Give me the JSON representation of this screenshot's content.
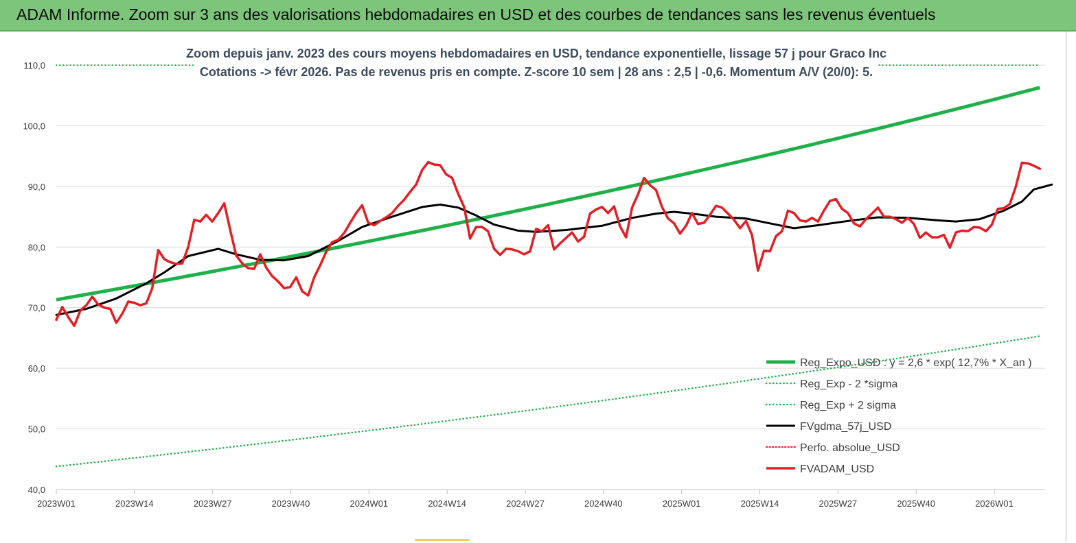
{
  "header": {
    "title": "ADAM Informe. Zoom sur 3 ans des valorisations hebdomadaires en USD et des courbes de tendances sans les revenus éventuels",
    "background": "#7dc57b"
  },
  "chart_data": {
    "type": "line",
    "subtitle_lines": [
      "Zoom depuis janv. 2023 des cours moyens hebdomadaires en USD, tendance exponentielle, lissage 57 j pour Graco Inc",
      "Cotations -> févr 2026.  Pas de revenus pris en compte. Z-score 10 sem  | 28 ans : 2,5 | -0,6. Momentum A/V (20/0): 5."
    ],
    "x_tick_labels": [
      "2023W01",
      "2023W14",
      "2023W27",
      "2023W40",
      "2024W01",
      "2024W14",
      "2024W27",
      "2024W40",
      "2025W01",
      "2025W14",
      "2025W27",
      "2025W40",
      "2026W01"
    ],
    "x_range_weeks": [
      0,
      164
    ],
    "ylim": [
      40,
      110
    ],
    "y_ticks": [
      40,
      50,
      60,
      70,
      80,
      90,
      100,
      110
    ],
    "y_tick_labels": [
      "40,0",
      "50,0",
      "60,0",
      "70,0",
      "80,0",
      "90,0",
      "100,0",
      "110,0"
    ],
    "grid": "horizontal",
    "legend_position": "bottom-right",
    "series": [
      {
        "name": "Reg_Expo_USD : y = 2,6 * exp( 12,7% *  X_an )",
        "color": "#1fb04a",
        "style": "solid-thick",
        "start": 71.3,
        "end": 106.3
      },
      {
        "name": "Reg_Exp - 2 *sigma",
        "color": "#1fb04a",
        "style": "dotted",
        "start": 43.8,
        "end": 65.3
      },
      {
        "name": "Reg_Exp + 2 sigma",
        "color": "#1fb04a",
        "style": "dotted",
        "start": 110.0,
        "end": 110.0
      },
      {
        "name": "FVgdma_57j_USD",
        "color": "#000000",
        "style": "solid",
        "points": [
          [
            0,
            68.8
          ],
          [
            5,
            69.8
          ],
          [
            10,
            71.5
          ],
          [
            15,
            74.0
          ],
          [
            18,
            75.8
          ],
          [
            22,
            78.5
          ],
          [
            27,
            79.7
          ],
          [
            30,
            78.8
          ],
          [
            34,
            77.9
          ],
          [
            38,
            77.8
          ],
          [
            42,
            78.5
          ],
          [
            47,
            81.0
          ],
          [
            51,
            83.3
          ],
          [
            56,
            85.0
          ],
          [
            61,
            86.6
          ],
          [
            64,
            87.0
          ],
          [
            67,
            86.5
          ],
          [
            70,
            85.2
          ],
          [
            73,
            83.7
          ],
          [
            77,
            82.7
          ],
          [
            80,
            82.5
          ],
          [
            85,
            82.8
          ],
          [
            91,
            83.5
          ],
          [
            96,
            84.8
          ],
          [
            100,
            85.5
          ],
          [
            103,
            85.8
          ],
          [
            106,
            85.5
          ],
          [
            110,
            85.0
          ],
          [
            115,
            84.7
          ],
          [
            119,
            83.9
          ],
          [
            123,
            83.1
          ],
          [
            127,
            83.6
          ],
          [
            132,
            84.3
          ],
          [
            137,
            84.9
          ],
          [
            142,
            84.8
          ],
          [
            147,
            84.4
          ],
          [
            150,
            84.2
          ],
          [
            154,
            84.6
          ],
          [
            158,
            86.0
          ],
          [
            161,
            87.5
          ],
          [
            163,
            89.5
          ],
          [
            166,
            90.3
          ]
        ]
      },
      {
        "name": "Perfo. absolue_USD",
        "color": "#e31e24",
        "style": "dotted"
      },
      {
        "name": "FVADAM_USD",
        "color": "#e31e24",
        "style": "solid-thick",
        "points": [
          [
            0,
            68.0
          ],
          [
            1,
            70.1
          ],
          [
            2,
            68.4
          ],
          [
            3,
            67.0
          ],
          [
            4,
            69.5
          ],
          [
            5,
            70.4
          ],
          [
            6,
            71.8
          ],
          [
            7,
            70.5
          ],
          [
            8,
            70.0
          ],
          [
            9,
            69.8
          ],
          [
            10,
            67.5
          ],
          [
            11,
            69.0
          ],
          [
            12,
            71.0
          ],
          [
            13,
            70.8
          ],
          [
            14,
            70.4
          ],
          [
            15,
            70.7
          ],
          [
            16,
            73.2
          ],
          [
            17,
            79.5
          ],
          [
            18,
            78.0
          ],
          [
            19,
            77.5
          ],
          [
            20,
            77.2
          ],
          [
            21,
            77.3
          ],
          [
            22,
            80.0
          ],
          [
            23,
            84.5
          ],
          [
            24,
            84.2
          ],
          [
            25,
            85.3
          ],
          [
            26,
            84.2
          ],
          [
            27,
            85.6
          ],
          [
            28,
            87.2
          ],
          [
            29,
            82.8
          ],
          [
            30,
            78.6
          ],
          [
            31,
            77.3
          ],
          [
            32,
            76.5
          ],
          [
            33,
            76.4
          ],
          [
            34,
            78.8
          ],
          [
            35,
            76.6
          ],
          [
            36,
            75.2
          ],
          [
            37,
            74.3
          ],
          [
            38,
            73.2
          ],
          [
            39,
            73.4
          ],
          [
            40,
            75.0
          ],
          [
            41,
            72.7
          ],
          [
            42,
            72.0
          ],
          [
            43,
            75.0
          ],
          [
            44,
            77.0
          ],
          [
            45,
            79.2
          ],
          [
            46,
            80.8
          ],
          [
            47,
            81.2
          ],
          [
            48,
            82.3
          ],
          [
            49,
            84.0
          ],
          [
            50,
            85.6
          ],
          [
            51,
            86.9
          ],
          [
            52,
            84.0
          ],
          [
            53,
            83.6
          ],
          [
            54,
            84.3
          ],
          [
            55,
            84.9
          ],
          [
            56,
            85.6
          ],
          [
            57,
            86.8
          ],
          [
            58,
            87.8
          ],
          [
            59,
            89.1
          ],
          [
            60,
            90.3
          ],
          [
            61,
            92.7
          ],
          [
            62,
            94.0
          ],
          [
            63,
            93.6
          ],
          [
            64,
            93.5
          ],
          [
            65,
            92.0
          ],
          [
            66,
            91.4
          ],
          [
            67,
            88.8
          ],
          [
            68,
            86.6
          ],
          [
            69,
            81.4
          ],
          [
            70,
            83.3
          ],
          [
            71,
            83.3
          ],
          [
            72,
            82.6
          ],
          [
            73,
            79.7
          ],
          [
            74,
            78.7
          ],
          [
            75,
            79.7
          ],
          [
            76,
            79.6
          ],
          [
            77,
            79.3
          ],
          [
            78,
            78.8
          ],
          [
            79,
            79.3
          ],
          [
            80,
            83.0
          ],
          [
            81,
            82.6
          ],
          [
            82,
            83.6
          ],
          [
            83,
            79.6
          ],
          [
            84,
            80.6
          ],
          [
            85,
            81.5
          ],
          [
            86,
            82.4
          ],
          [
            87,
            80.9
          ],
          [
            88,
            81.7
          ],
          [
            89,
            85.5
          ],
          [
            90,
            86.2
          ],
          [
            91,
            86.6
          ],
          [
            92,
            85.6
          ],
          [
            93,
            86.7
          ],
          [
            94,
            83.4
          ],
          [
            95,
            81.6
          ],
          [
            96,
            86.5
          ],
          [
            97,
            88.7
          ],
          [
            98,
            91.4
          ],
          [
            99,
            90.2
          ],
          [
            100,
            89.4
          ],
          [
            101,
            86.6
          ],
          [
            102,
            84.7
          ],
          [
            103,
            83.9
          ],
          [
            104,
            82.2
          ],
          [
            105,
            83.5
          ],
          [
            106,
            85.6
          ],
          [
            107,
            83.8
          ],
          [
            108,
            84.0
          ],
          [
            109,
            85.3
          ],
          [
            110,
            86.8
          ],
          [
            111,
            86.5
          ],
          [
            112,
            85.5
          ],
          [
            113,
            84.5
          ],
          [
            114,
            83.1
          ],
          [
            115,
            84.3
          ],
          [
            116,
            82.0
          ],
          [
            117,
            76.1
          ],
          [
            118,
            79.4
          ],
          [
            119,
            79.3
          ],
          [
            120,
            81.8
          ],
          [
            121,
            82.6
          ],
          [
            122,
            86.0
          ],
          [
            123,
            85.6
          ],
          [
            124,
            84.4
          ],
          [
            125,
            84.2
          ],
          [
            126,
            84.8
          ],
          [
            127,
            84.2
          ],
          [
            128,
            86.0
          ],
          [
            129,
            87.6
          ],
          [
            130,
            87.9
          ],
          [
            131,
            86.3
          ],
          [
            132,
            85.6
          ],
          [
            133,
            83.9
          ],
          [
            134,
            83.4
          ],
          [
            135,
            84.6
          ],
          [
            136,
            85.5
          ],
          [
            137,
            86.5
          ],
          [
            138,
            85.0
          ],
          [
            139,
            85.0
          ],
          [
            140,
            84.6
          ],
          [
            141,
            84.0
          ],
          [
            142,
            84.8
          ],
          [
            143,
            83.8
          ],
          [
            144,
            81.5
          ],
          [
            145,
            82.4
          ],
          [
            146,
            81.6
          ],
          [
            147,
            81.6
          ],
          [
            148,
            82.0
          ],
          [
            149,
            79.9
          ],
          [
            150,
            82.4
          ],
          [
            151,
            82.7
          ],
          [
            152,
            82.6
          ],
          [
            153,
            83.3
          ],
          [
            154,
            83.2
          ],
          [
            155,
            82.6
          ],
          [
            156,
            83.7
          ],
          [
            157,
            86.3
          ],
          [
            158,
            86.4
          ],
          [
            159,
            87.1
          ],
          [
            160,
            90.0
          ],
          [
            161,
            93.9
          ],
          [
            162,
            93.8
          ],
          [
            163,
            93.4
          ],
          [
            164,
            92.9
          ]
        ]
      }
    ]
  }
}
